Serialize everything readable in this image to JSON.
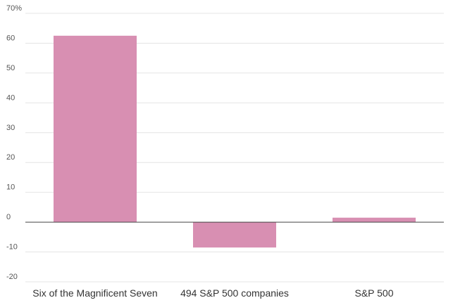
{
  "chart_data": {
    "type": "bar",
    "title": "",
    "xlabel": "",
    "ylabel": "",
    "categories": [
      "Six of the Magnificent Seven",
      "494 S&P 500 companies",
      "S&P 500"
    ],
    "values": [
      62.5,
      -8.5,
      1.5
    ],
    "ylim": [
      -20,
      70
    ],
    "yticks": [
      -20,
      -10,
      0,
      10,
      20,
      30,
      40,
      50,
      60,
      70
    ],
    "ytick_labels": [
      "-20",
      "-10",
      "0",
      "10",
      "20",
      "30",
      "40",
      "50",
      "60",
      "70%"
    ],
    "grid": true,
    "legend": "none",
    "bar_color": "#d88fb2"
  }
}
